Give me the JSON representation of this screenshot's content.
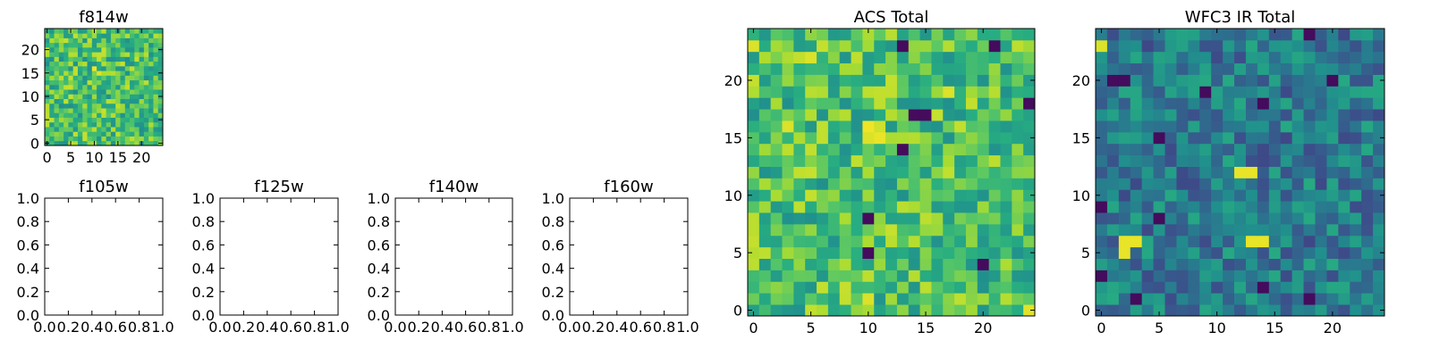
{
  "figure": {
    "background": "#ffffff"
  },
  "chart_data": [
    {
      "id": "f814w",
      "type": "heatmap",
      "title": "f814w",
      "xlabel": "",
      "ylabel": "",
      "grid_size": 25,
      "xlim": [
        -0.5,
        24.5
      ],
      "ylim": [
        -0.5,
        24.5
      ],
      "xticks": [
        0,
        5,
        10,
        15,
        20
      ],
      "yticks": [
        0,
        5,
        10,
        15,
        20
      ],
      "colormap": "viridis",
      "value_range": [
        0,
        1
      ],
      "seed": 814,
      "level_profile": "high",
      "hotspots": [
        {
          "x": 10,
          "y": 16,
          "v": 0.98
        },
        {
          "x": 11,
          "y": 15,
          "v": 0.95
        }
      ]
    },
    {
      "id": "acs_total",
      "type": "heatmap",
      "title": "ACS Total",
      "xlabel": "",
      "ylabel": "",
      "grid_size": 25,
      "xlim": [
        -0.5,
        24.5
      ],
      "ylim": [
        -0.5,
        24.5
      ],
      "xticks": [
        0,
        5,
        10,
        15,
        20
      ],
      "yticks": [
        0,
        5,
        10,
        15,
        20
      ],
      "colormap": "viridis",
      "value_range": [
        0,
        1
      ],
      "seed": 814,
      "level_profile": "high",
      "hotspots": [
        {
          "x": 10,
          "y": 16,
          "v": 0.98
        },
        {
          "x": 11,
          "y": 15,
          "v": 0.97
        },
        {
          "x": 10,
          "y": 15,
          "v": 0.95
        },
        {
          "x": 11,
          "y": 16,
          "v": 0.93
        },
        {
          "x": 3,
          "y": 16,
          "v": 0.95
        },
        {
          "x": 5,
          "y": 22,
          "v": 0.95
        },
        {
          "x": 17,
          "y": 19,
          "v": 0.95
        },
        {
          "x": 10,
          "y": 1,
          "v": 0.95
        },
        {
          "x": 24,
          "y": 0,
          "v": 0.96
        },
        {
          "x": 0,
          "y": 23,
          "v": 0.95
        },
        {
          "x": 14,
          "y": 17,
          "v": 0.03
        },
        {
          "x": 15,
          "y": 17,
          "v": 0.03
        },
        {
          "x": 13,
          "y": 14,
          "v": 0.03
        },
        {
          "x": 10,
          "y": 8,
          "v": 0.03
        },
        {
          "x": 10,
          "y": 5,
          "v": 0.03
        },
        {
          "x": 20,
          "y": 4,
          "v": 0.03
        },
        {
          "x": 21,
          "y": 23,
          "v": 0.03
        },
        {
          "x": 13,
          "y": 23,
          "v": 0.03
        },
        {
          "x": 24,
          "y": 18,
          "v": 0.03
        }
      ]
    },
    {
      "id": "wfc3_ir_total",
      "type": "heatmap",
      "title": "WFC3 IR Total",
      "xlabel": "",
      "ylabel": "",
      "grid_size": 25,
      "xlim": [
        -0.5,
        24.5
      ],
      "ylim": [
        -0.5,
        24.5
      ],
      "xticks": [
        0,
        5,
        10,
        15,
        20
      ],
      "yticks": [
        0,
        5,
        10,
        15,
        20
      ],
      "colormap": "viridis",
      "value_range": [
        0,
        1
      ],
      "seed": 140,
      "level_profile": "low",
      "hotspots": [
        {
          "x": 12,
          "y": 12,
          "v": 0.97
        },
        {
          "x": 13,
          "y": 12,
          "v": 0.97
        },
        {
          "x": 2,
          "y": 6,
          "v": 0.97
        },
        {
          "x": 3,
          "y": 6,
          "v": 0.97
        },
        {
          "x": 2,
          "y": 5,
          "v": 0.97
        },
        {
          "x": 13,
          "y": 6,
          "v": 0.97
        },
        {
          "x": 14,
          "y": 6,
          "v": 0.97
        },
        {
          "x": 0,
          "y": 23,
          "v": 0.95
        },
        {
          "x": 1,
          "y": 20,
          "v": 0.03
        },
        {
          "x": 2,
          "y": 20,
          "v": 0.03
        },
        {
          "x": 9,
          "y": 19,
          "v": 0.03
        },
        {
          "x": 14,
          "y": 18,
          "v": 0.03
        },
        {
          "x": 5,
          "y": 15,
          "v": 0.03
        },
        {
          "x": 20,
          "y": 20,
          "v": 0.03
        },
        {
          "x": 18,
          "y": 24,
          "v": 0.03
        },
        {
          "x": 5,
          "y": 8,
          "v": 0.03
        },
        {
          "x": 0,
          "y": 9,
          "v": 0.03
        },
        {
          "x": 14,
          "y": 2,
          "v": 0.03
        },
        {
          "x": 18,
          "y": 1,
          "v": 0.03
        },
        {
          "x": 3,
          "y": 1,
          "v": 0.03
        },
        {
          "x": 0,
          "y": 3,
          "v": 0.03
        }
      ]
    },
    {
      "id": "f105w",
      "type": "heatmap",
      "title": "f105w",
      "xlabel": "",
      "ylabel": "",
      "empty": true,
      "xlim": [
        0,
        1
      ],
      "ylim": [
        0,
        1
      ],
      "xticks": [
        "0.0",
        "0.2",
        "0.4",
        "0.6",
        "0.8",
        "1.0"
      ],
      "yticks": [
        "0.0",
        "0.2",
        "0.4",
        "0.6",
        "0.8",
        "1.0"
      ]
    },
    {
      "id": "f125w",
      "type": "heatmap",
      "title": "f125w",
      "xlabel": "",
      "ylabel": "",
      "empty": true,
      "xlim": [
        0,
        1
      ],
      "ylim": [
        0,
        1
      ],
      "xticks": [
        "0.0",
        "0.2",
        "0.4",
        "0.6",
        "0.8",
        "1.0"
      ],
      "yticks": [
        "0.0",
        "0.2",
        "0.4",
        "0.6",
        "0.8",
        "1.0"
      ]
    },
    {
      "id": "f140w",
      "type": "heatmap",
      "title": "f140w",
      "xlabel": "",
      "ylabel": "",
      "empty": true,
      "xlim": [
        0,
        1
      ],
      "ylim": [
        0,
        1
      ],
      "xticks": [
        "0.0",
        "0.2",
        "0.4",
        "0.6",
        "0.8",
        "1.0"
      ],
      "yticks": [
        "0.0",
        "0.2",
        "0.4",
        "0.6",
        "0.8",
        "1.0"
      ]
    },
    {
      "id": "f160w",
      "type": "heatmap",
      "title": "f160w",
      "xlabel": "",
      "ylabel": "",
      "empty": true,
      "xlim": [
        0,
        1
      ],
      "ylim": [
        0,
        1
      ],
      "xticks": [
        "0.0",
        "0.2",
        "0.4",
        "0.6",
        "0.8",
        "1.0"
      ],
      "yticks": [
        "0.0",
        "0.2",
        "0.4",
        "0.6",
        "0.8",
        "1.0"
      ]
    }
  ]
}
